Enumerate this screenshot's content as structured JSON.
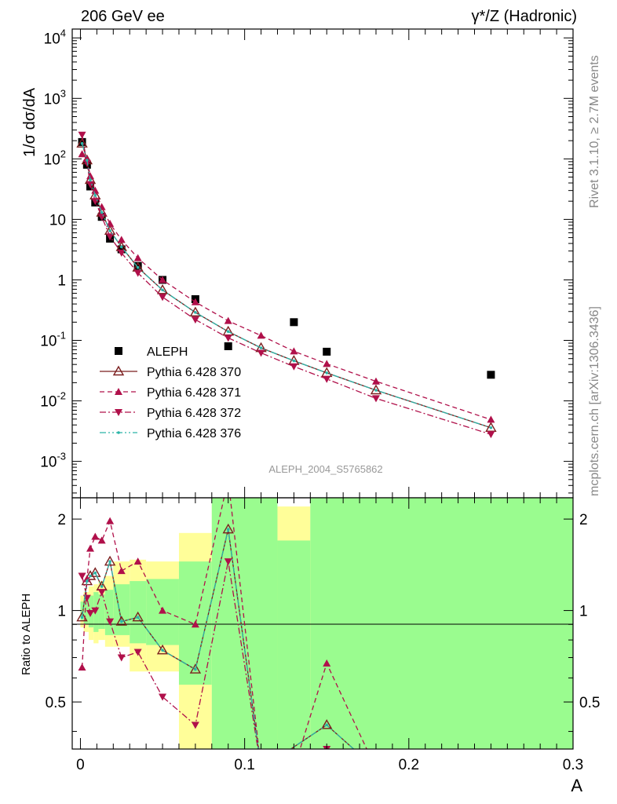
{
  "header": {
    "left": "206 GeV ee",
    "right": "γ*/Z (Hadronic)"
  },
  "side_labels": {
    "upper": "Rivet 3.1.10, ≥ 2.7M events",
    "lower": "mcplots.cern.ch [arXiv:1306.3436]"
  },
  "analysis_tag": "ALEPH_2004_S5765862",
  "chart_data": [
    {
      "type": "scatter",
      "panel": "main",
      "ylabel": "1/σ dσ/dA",
      "xlabel": "A",
      "yscale": "log",
      "ylim": [
        0.00025,
        14000
      ],
      "xlim": [
        -0.005,
        0.3
      ],
      "ytick_labels": [
        "10^-3",
        "10^-2",
        "10^-1",
        "1",
        "10",
        "10^2",
        "10^3",
        "10^4"
      ],
      "legend_position": "lower-left",
      "series": [
        {
          "name": "ALEPH",
          "marker": "square",
          "color": "#000000",
          "x": [
            0.001,
            0.004,
            0.006,
            0.009,
            0.013,
            0.018,
            0.025,
            0.035,
            0.05,
            0.07,
            0.09,
            0.13,
            0.15,
            0.25
          ],
          "y": [
            190,
            80,
            35,
            19,
            11,
            4.8,
            3.2,
            1.7,
            1.0,
            0.48,
            0.08,
            0.2,
            0.065,
            0.027
          ]
        },
        {
          "name": "Pythia 6.428 370",
          "marker": "open-triangle-up",
          "line": "solid",
          "color": "#7b1f1f",
          "x": [
            0.001,
            0.004,
            0.006,
            0.009,
            0.013,
            0.018,
            0.025,
            0.035,
            0.05,
            0.07,
            0.09,
            0.11,
            0.13,
            0.15,
            0.18,
            0.25
          ],
          "y": [
            180,
            95,
            45,
            25,
            13,
            6.5,
            3.5,
            1.6,
            0.68,
            0.29,
            0.14,
            0.075,
            0.046,
            0.029,
            0.015,
            0.0036
          ]
        },
        {
          "name": "Pythia 6.428 371",
          "marker": "triangle-up",
          "line": "dashed",
          "color": "#b0104a",
          "x": [
            0.001,
            0.004,
            0.006,
            0.009,
            0.013,
            0.018,
            0.025,
            0.035,
            0.05,
            0.07,
            0.09,
            0.11,
            0.13,
            0.15,
            0.18,
            0.25
          ],
          "y": [
            120,
            100,
            52,
            30,
            16,
            8.5,
            4.6,
            2.3,
            1.0,
            0.43,
            0.21,
            0.12,
            0.066,
            0.041,
            0.021,
            0.0049
          ]
        },
        {
          "name": "Pythia 6.428 372",
          "marker": "triangle-down",
          "line": "dashdot",
          "color": "#b0104a",
          "x": [
            0.001,
            0.004,
            0.006,
            0.009,
            0.013,
            0.018,
            0.025,
            0.035,
            0.05,
            0.07,
            0.09,
            0.11,
            0.13,
            0.15,
            0.18,
            0.25
          ],
          "y": [
            250,
            85,
            38,
            20,
            11,
            5.2,
            2.8,
            1.3,
            0.52,
            0.22,
            0.11,
            0.062,
            0.037,
            0.023,
            0.011,
            0.0028
          ]
        },
        {
          "name": "Pythia 6.428 376",
          "marker": "dot",
          "line": "dashdotdot",
          "color": "#2bb5a8",
          "x": [
            0.001,
            0.004,
            0.006,
            0.009,
            0.013,
            0.018,
            0.025,
            0.035,
            0.05,
            0.07,
            0.09,
            0.11,
            0.13,
            0.15,
            0.18,
            0.25
          ],
          "y": [
            180,
            95,
            45,
            25,
            13,
            6.5,
            3.5,
            1.6,
            0.68,
            0.29,
            0.14,
            0.075,
            0.046,
            0.029,
            0.015,
            0.0036
          ]
        }
      ]
    },
    {
      "type": "line",
      "panel": "ratio",
      "ylabel": "Ratio to ALEPH",
      "xlabel": "A",
      "yscale": "log",
      "ylim": [
        0.35,
        2.35
      ],
      "xlim": [
        -0.005,
        0.3
      ],
      "xtick_labels": [
        "0",
        "0.1",
        "0.2",
        "0.3"
      ],
      "ytick_labels": [
        "0.5",
        "1",
        "2"
      ],
      "bands": [
        {
          "x0": 0.0,
          "x1": 0.002,
          "green": [
            0.93,
            1.07
          ],
          "yellow": [
            0.88,
            1.12
          ]
        },
        {
          "x0": 0.002,
          "x1": 0.005,
          "green": [
            0.9,
            1.1
          ],
          "yellow": [
            0.85,
            1.15
          ]
        },
        {
          "x0": 0.005,
          "x1": 0.008,
          "green": [
            0.88,
            1.12
          ],
          "yellow": [
            0.8,
            1.2
          ]
        },
        {
          "x0": 0.008,
          "x1": 0.011,
          "green": [
            0.85,
            1.15
          ],
          "yellow": [
            0.78,
            1.22
          ]
        },
        {
          "x0": 0.011,
          "x1": 0.015,
          "green": [
            0.87,
            1.13
          ],
          "yellow": [
            0.8,
            1.25
          ]
        },
        {
          "x0": 0.015,
          "x1": 0.02,
          "green": [
            0.83,
            1.17
          ],
          "yellow": [
            0.76,
            1.3
          ]
        },
        {
          "x0": 0.02,
          "x1": 0.03,
          "green": [
            0.83,
            1.22
          ],
          "yellow": [
            0.76,
            1.45
          ]
        },
        {
          "x0": 0.03,
          "x1": 0.04,
          "green": [
            0.78,
            1.25
          ],
          "yellow": [
            0.63,
            1.47
          ]
        },
        {
          "x0": 0.04,
          "x1": 0.06,
          "green": [
            0.77,
            1.27
          ],
          "yellow": [
            0.63,
            1.45
          ]
        },
        {
          "x0": 0.06,
          "x1": 0.08,
          "green": [
            0.57,
            1.45
          ],
          "yellow": [
            0.35,
            1.8
          ]
        },
        {
          "x0": 0.08,
          "x1": 0.12,
          "green": [
            0.35,
            2.35
          ],
          "yellow": [
            0.35,
            2.35
          ]
        },
        {
          "x0": 0.12,
          "x1": 0.14,
          "green": [
            0.35,
            1.7
          ],
          "yellow": [
            0.35,
            2.2
          ]
        },
        {
          "x0": 0.14,
          "x1": 0.3,
          "green": [
            0.35,
            2.35
          ],
          "yellow": [
            0.35,
            2.35
          ]
        }
      ],
      "series": [
        {
          "name": "Pythia 6.428 370",
          "marker": "open-triangle-up",
          "line": "solid",
          "color": "#7b1f1f",
          "x": [
            0.001,
            0.004,
            0.006,
            0.009,
            0.013,
            0.018,
            0.025,
            0.035,
            0.05,
            0.07,
            0.09,
            0.11,
            0.15,
            0.18
          ],
          "y": [
            0.95,
            1.25,
            1.3,
            1.33,
            1.2,
            1.45,
            0.92,
            0.95,
            0.74,
            0.64,
            1.85,
            0.3,
            0.42,
            0.3
          ]
        },
        {
          "name": "Pythia 6.428 371",
          "marker": "triangle-up",
          "line": "dashed",
          "color": "#b0104a",
          "x": [
            0.001,
            0.004,
            0.006,
            0.009,
            0.013,
            0.018,
            0.025,
            0.035,
            0.05,
            0.07,
            0.09,
            0.11,
            0.13,
            0.15,
            0.18
          ],
          "y": [
            0.65,
            1.27,
            1.6,
            1.75,
            1.7,
            1.97,
            1.35,
            1.45,
            1.0,
            0.9,
            2.7,
            0.3,
            0.3,
            0.67,
            0.3
          ]
        },
        {
          "name": "Pythia 6.428 372",
          "marker": "triangle-down",
          "line": "dashdot",
          "color": "#b0104a",
          "x": [
            0.001,
            0.004,
            0.006,
            0.009,
            0.013,
            0.018,
            0.025,
            0.035,
            0.05,
            0.07,
            0.09,
            0.11,
            0.15,
            0.18
          ],
          "y": [
            1.3,
            1.1,
            0.98,
            1.0,
            1.15,
            0.92,
            0.7,
            0.73,
            0.52,
            0.42,
            1.45,
            0.3,
            0.35,
            0.3
          ]
        },
        {
          "name": "Pythia 6.428 376",
          "marker": "dot",
          "line": "dashdotdot",
          "color": "#2bb5a8",
          "x": [
            0.001,
            0.004,
            0.006,
            0.009,
            0.013,
            0.018,
            0.025,
            0.035,
            0.05,
            0.07,
            0.09,
            0.11,
            0.15,
            0.18
          ],
          "y": [
            0.95,
            1.25,
            1.3,
            1.33,
            1.2,
            1.45,
            0.92,
            0.95,
            0.74,
            0.64,
            1.85,
            0.3,
            0.42,
            0.3
          ]
        }
      ]
    }
  ]
}
